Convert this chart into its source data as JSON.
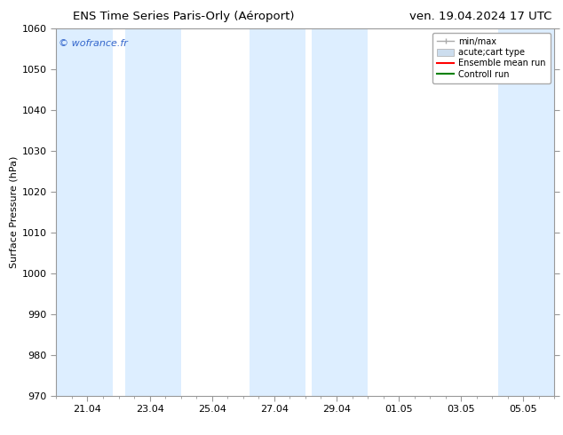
{
  "title_left": "ENS Time Series Paris-Orly (Aéroport)",
  "title_right": "ven. 19.04.2024 17 UTC",
  "ylabel": "Surface Pressure (hPa)",
  "ylim": [
    970,
    1060
  ],
  "yticks": [
    970,
    980,
    990,
    1000,
    1010,
    1020,
    1030,
    1040,
    1050,
    1060
  ],
  "xtick_labels": [
    "21.04",
    "23.04",
    "25.04",
    "27.04",
    "29.04",
    "01.05",
    "03.05",
    "05.05"
  ],
  "xtick_positions": [
    1,
    3,
    5,
    7,
    9,
    11,
    13,
    15
  ],
  "xlim": [
    0,
    16
  ],
  "shaded_bands": [
    {
      "xmin": 0.0,
      "xmax": 1.8
    },
    {
      "xmin": 2.2,
      "xmax": 4.0
    },
    {
      "xmin": 6.2,
      "xmax": 8.0
    },
    {
      "xmin": 8.2,
      "xmax": 10.0
    },
    {
      "xmin": 14.2,
      "xmax": 16.0
    }
  ],
  "shaded_color": "#ddeeff",
  "background_color": "#ffffff",
  "watermark": "© wofrance.fr",
  "watermark_color": "#3366cc",
  "legend_items": [
    {
      "label": "min/max",
      "color": "#aaaaaa"
    },
    {
      "label": "acute;cart type",
      "color": "#ccddee"
    },
    {
      "label": "Ensemble mean run",
      "color": "red"
    },
    {
      "label": "Controll run",
      "color": "green"
    }
  ],
  "title_fontsize": 9.5,
  "tick_fontsize": 8,
  "ylabel_fontsize": 8,
  "legend_fontsize": 7
}
